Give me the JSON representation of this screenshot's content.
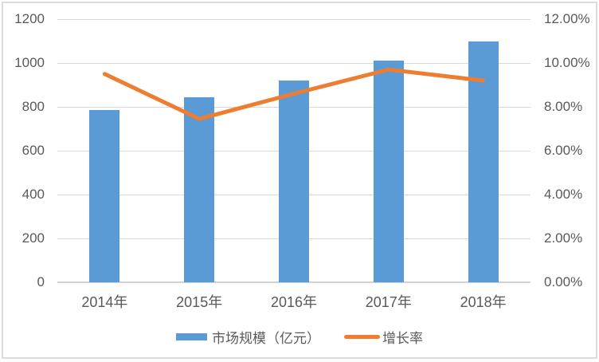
{
  "chart_data": {
    "type": "bar",
    "subtype": "bar-line-combo",
    "title": "",
    "categories": [
      "2014年",
      "2015年",
      "2016年",
      "2017年",
      "2018年"
    ],
    "series": [
      {
        "name": "市场规模（亿元）",
        "type": "bar",
        "axis": "left",
        "color": "#5B9BD5",
        "values": [
          785,
          845,
          920,
          1010,
          1100
        ]
      },
      {
        "name": "增长率",
        "type": "line",
        "axis": "right",
        "color": "#ED7D31",
        "unit": "%",
        "values": [
          9.5,
          7.45,
          8.6,
          9.7,
          9.2
        ]
      }
    ],
    "left_axis": {
      "min": 0,
      "max": 1200,
      "step": 200,
      "tick_values": [
        0,
        200,
        400,
        600,
        800,
        1000,
        1200
      ],
      "tick_labels": [
        "0",
        "200",
        "400",
        "600",
        "800",
        "1000",
        "1200"
      ]
    },
    "right_axis": {
      "min": 0,
      "max": 12,
      "step": 2,
      "tick_values": [
        0,
        2,
        4,
        6,
        8,
        10,
        12
      ],
      "tick_labels": [
        "0.00%",
        "2.00%",
        "4.00%",
        "6.00%",
        "8.00%",
        "10.00%",
        "12.00%"
      ]
    },
    "grid": true,
    "legend_position": "bottom"
  },
  "colors": {
    "bar": "#5B9BD5",
    "line": "#ED7D31",
    "text": "#595959",
    "gridline": "#D9D9D9",
    "axis_line": "#D2D2D2",
    "background": "#FFFFFF",
    "border": "#DBDBDB"
  }
}
